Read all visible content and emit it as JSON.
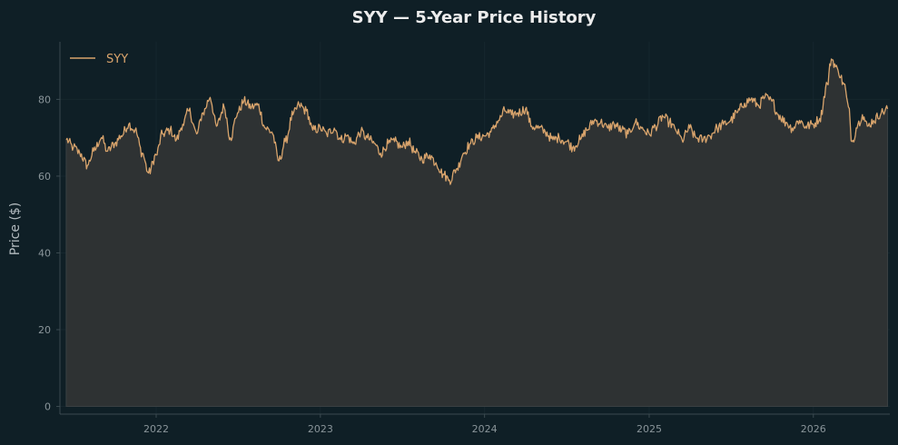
{
  "colors": {
    "background": "#0f1f26",
    "axis": "#3b4a50",
    "grid": "#16272e",
    "title": "#ececec",
    "tick_text": "#8a959a",
    "axis_text": "#b4bcc0",
    "series_line": "#d9a46c",
    "area_fill": "#2e3233",
    "area_edge": "#3a4042",
    "legend_text": "#d9a46c"
  },
  "chart_data": {
    "type": "area",
    "title": "SYY — 5-Year Price History",
    "xlabel": "",
    "ylabel": "Price ($)",
    "x_range": [
      "2021-06-01",
      "2026-06-20"
    ],
    "ylim": [
      -2,
      95
    ],
    "grid": true,
    "legend_position": "top-left",
    "x_ticks": [
      {
        "label": "2022",
        "date": "2022-01-01"
      },
      {
        "label": "2023",
        "date": "2023-01-01"
      },
      {
        "label": "2024",
        "date": "2024-01-01"
      },
      {
        "label": "2025",
        "date": "2025-01-01"
      },
      {
        "label": "2026",
        "date": "2026-01-01"
      }
    ],
    "y_ticks": [
      0,
      20,
      40,
      60,
      80
    ],
    "series": [
      {
        "name": "SYY",
        "points": [
          [
            "2021-06-15",
            69.5
          ],
          [
            "2021-07-01",
            67.5
          ],
          [
            "2021-07-15",
            66.0
          ],
          [
            "2021-08-01",
            62.8
          ],
          [
            "2021-08-15",
            66.5
          ],
          [
            "2021-09-01",
            70.0
          ],
          [
            "2021-09-15",
            66.5
          ],
          [
            "2021-10-01",
            68.5
          ],
          [
            "2021-10-15",
            70.5
          ],
          [
            "2021-11-01",
            73.5
          ],
          [
            "2021-11-15",
            72.0
          ],
          [
            "2021-12-01",
            66.0
          ],
          [
            "2021-12-15",
            60.8
          ],
          [
            "2022-01-01",
            65.5
          ],
          [
            "2022-01-15",
            71.0
          ],
          [
            "2022-02-01",
            72.0
          ],
          [
            "2022-02-15",
            69.5
          ],
          [
            "2022-03-01",
            73.5
          ],
          [
            "2022-03-15",
            77.0
          ],
          [
            "2022-04-01",
            71.0
          ],
          [
            "2022-04-15",
            76.5
          ],
          [
            "2022-05-01",
            80.5
          ],
          [
            "2022-05-15",
            73.0
          ],
          [
            "2022-06-01",
            78.0
          ],
          [
            "2022-06-15",
            70.0
          ],
          [
            "2022-07-01",
            76.5
          ],
          [
            "2022-07-15",
            79.5
          ],
          [
            "2022-08-01",
            78.0
          ],
          [
            "2022-08-15",
            78.5
          ],
          [
            "2022-09-01",
            72.5
          ],
          [
            "2022-09-15",
            71.5
          ],
          [
            "2022-10-01",
            64.0
          ],
          [
            "2022-10-15",
            69.0
          ],
          [
            "2022-11-01",
            76.0
          ],
          [
            "2022-11-15",
            78.5
          ],
          [
            "2022-12-01",
            77.0
          ],
          [
            "2022-12-15",
            72.0
          ],
          [
            "2023-01-01",
            72.5
          ],
          [
            "2023-01-15",
            71.0
          ],
          [
            "2023-02-01",
            72.5
          ],
          [
            "2023-02-15",
            69.5
          ],
          [
            "2023-03-01",
            70.5
          ],
          [
            "2023-03-15",
            68.5
          ],
          [
            "2023-04-01",
            71.5
          ],
          [
            "2023-04-15",
            70.0
          ],
          [
            "2023-05-01",
            68.5
          ],
          [
            "2023-05-15",
            66.0
          ],
          [
            "2023-06-01",
            68.5
          ],
          [
            "2023-06-15",
            69.0
          ],
          [
            "2023-07-01",
            67.5
          ],
          [
            "2023-07-15",
            69.0
          ],
          [
            "2023-08-01",
            66.0
          ],
          [
            "2023-08-15",
            64.5
          ],
          [
            "2023-09-01",
            65.5
          ],
          [
            "2023-09-15",
            63.5
          ],
          [
            "2023-10-01",
            60.5
          ],
          [
            "2023-10-15",
            59.0
          ],
          [
            "2023-11-01",
            62.0
          ],
          [
            "2023-11-15",
            66.0
          ],
          [
            "2023-12-01",
            68.5
          ],
          [
            "2023-12-15",
            70.0
          ],
          [
            "2024-01-01",
            70.5
          ],
          [
            "2024-01-15",
            71.5
          ],
          [
            "2024-02-01",
            74.5
          ],
          [
            "2024-02-15",
            77.0
          ],
          [
            "2024-03-01",
            76.0
          ],
          [
            "2024-03-15",
            76.5
          ],
          [
            "2024-04-01",
            77.5
          ],
          [
            "2024-04-15",
            73.0
          ],
          [
            "2024-05-01",
            72.5
          ],
          [
            "2024-05-15",
            71.5
          ],
          [
            "2024-06-01",
            69.5
          ],
          [
            "2024-06-15",
            70.0
          ],
          [
            "2024-07-01",
            69.0
          ],
          [
            "2024-07-15",
            67.5
          ],
          [
            "2024-08-01",
            69.5
          ],
          [
            "2024-08-15",
            72.0
          ],
          [
            "2024-09-01",
            74.5
          ],
          [
            "2024-09-15",
            74.0
          ],
          [
            "2024-10-01",
            72.5
          ],
          [
            "2024-10-15",
            73.5
          ],
          [
            "2024-11-01",
            72.0
          ],
          [
            "2024-11-15",
            71.0
          ],
          [
            "2024-12-01",
            74.0
          ],
          [
            "2024-12-15",
            72.5
          ],
          [
            "2025-01-01",
            71.0
          ],
          [
            "2025-01-15",
            73.0
          ],
          [
            "2025-02-01",
            75.5
          ],
          [
            "2025-02-15",
            74.0
          ],
          [
            "2025-03-01",
            72.0
          ],
          [
            "2025-03-15",
            69.5
          ],
          [
            "2025-04-01",
            72.5
          ],
          [
            "2025-04-15",
            70.0
          ],
          [
            "2025-05-01",
            69.5
          ],
          [
            "2025-05-15",
            70.5
          ],
          [
            "2025-06-01",
            72.5
          ],
          [
            "2025-06-15",
            73.5
          ],
          [
            "2025-07-01",
            74.5
          ],
          [
            "2025-07-15",
            76.5
          ],
          [
            "2025-08-01",
            79.0
          ],
          [
            "2025-08-15",
            80.0
          ],
          [
            "2025-09-01",
            78.5
          ],
          [
            "2025-09-15",
            80.5
          ],
          [
            "2025-10-01",
            79.5
          ],
          [
            "2025-10-15",
            76.0
          ],
          [
            "2025-11-01",
            74.0
          ],
          [
            "2025-11-15",
            72.5
          ],
          [
            "2025-12-01",
            74.5
          ],
          [
            "2025-12-15",
            73.0
          ],
          [
            "2026-01-01",
            73.5
          ],
          [
            "2026-01-15",
            75.0
          ],
          [
            "2026-02-01",
            84.0
          ],
          [
            "2026-02-10",
            90.5
          ],
          [
            "2026-02-25",
            87.5
          ],
          [
            "2026-03-10",
            84.0
          ],
          [
            "2026-03-20",
            78.0
          ],
          [
            "2026-03-28",
            69.0
          ],
          [
            "2026-04-10",
            73.5
          ],
          [
            "2026-04-20",
            76.0
          ],
          [
            "2026-05-01",
            73.0
          ],
          [
            "2026-05-15",
            74.5
          ],
          [
            "2026-06-01",
            76.5
          ],
          [
            "2026-06-15",
            77.5
          ]
        ]
      }
    ]
  }
}
